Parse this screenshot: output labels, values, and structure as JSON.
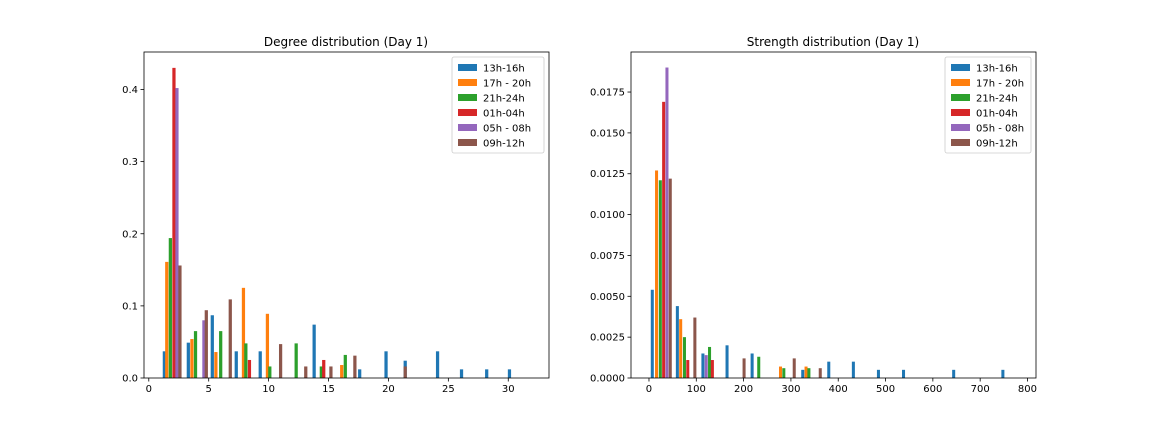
{
  "chart_data": [
    {
      "type": "bar",
      "title": "Degree distribution (Day 1)",
      "xlabel": "",
      "ylabel": "",
      "xlim": [
        -0.4,
        33.4
      ],
      "ylim": [
        0,
        0.452
      ],
      "xticks": [
        0,
        5,
        10,
        15,
        20,
        25,
        30
      ],
      "yticks": [
        0.0,
        0.1,
        0.2,
        0.3,
        0.4
      ],
      "ytick_labels": [
        "0.0",
        "0.1",
        "0.2",
        "0.3",
        "0.4"
      ],
      "bar_width": 0.27,
      "grid": false,
      "legend_position": "top-right",
      "series": [
        {
          "name": "13h-16h",
          "color": "#1f77b4",
          "points": [
            [
              1.3,
              0.037
            ],
            [
              3.3,
              0.049
            ],
            [
              5.3,
              0.087
            ],
            [
              7.3,
              0.037
            ],
            [
              9.3,
              0.037
            ],
            [
              13.8,
              0.074
            ],
            [
              17.6,
              0.012
            ],
            [
              19.8,
              0.037
            ],
            [
              21.4,
              0.024
            ],
            [
              24.1,
              0.037
            ],
            [
              26.1,
              0.012
            ],
            [
              28.2,
              0.012
            ],
            [
              30.1,
              0.012
            ]
          ]
        },
        {
          "name": "17h - 20h",
          "color": "#ff7f0e",
          "points": [
            [
              1.5,
              0.161
            ],
            [
              3.6,
              0.054
            ],
            [
              5.6,
              0.036
            ],
            [
              7.9,
              0.125
            ],
            [
              9.9,
              0.089
            ],
            [
              16.1,
              0.018
            ]
          ]
        },
        {
          "name": "21h-24h",
          "color": "#2ca02c",
          "points": [
            [
              1.8,
              0.194
            ],
            [
              3.9,
              0.065
            ],
            [
              6.0,
              0.065
            ],
            [
              8.1,
              0.048
            ],
            [
              10.1,
              0.016
            ],
            [
              12.3,
              0.048
            ],
            [
              14.4,
              0.016
            ],
            [
              16.4,
              0.032
            ]
          ]
        },
        {
          "name": "01h-04h",
          "color": "#d62728",
          "points": [
            [
              2.1,
              0.43
            ],
            [
              8.4,
              0.025
            ],
            [
              14.6,
              0.025
            ]
          ]
        },
        {
          "name": "05h - 08h",
          "color": "#9467bd",
          "points": [
            [
              2.35,
              0.402
            ],
            [
              4.6,
              0.08
            ]
          ]
        },
        {
          "name": "09h-12h",
          "color": "#8c564b",
          "points": [
            [
              2.6,
              0.156
            ],
            [
              4.8,
              0.094
            ],
            [
              6.8,
              0.109
            ],
            [
              11.0,
              0.047
            ],
            [
              13.1,
              0.016
            ],
            [
              15.2,
              0.016
            ],
            [
              17.2,
              0.031
            ],
            [
              21.4,
              0.016
            ]
          ]
        }
      ]
    },
    {
      "type": "bar",
      "title": "Strength distribution (Day 1)",
      "xlabel": "",
      "ylabel": "",
      "xlim": [
        -38,
        818
      ],
      "ylim": [
        0,
        0.01995
      ],
      "xticks": [
        0,
        100,
        200,
        300,
        400,
        500,
        600,
        700,
        800
      ],
      "yticks": [
        0.0,
        0.0025,
        0.005,
        0.0075,
        0.01,
        0.0125,
        0.015,
        0.0175
      ],
      "ytick_labels": [
        "0.0000",
        "0.0025",
        "0.0050",
        "0.0075",
        "0.0100",
        "0.0125",
        "0.0150",
        "0.0175"
      ],
      "bar_width": 6.4,
      "grid": false,
      "legend_position": "top-right",
      "series": [
        {
          "name": "13h-16h",
          "color": "#1f77b4",
          "points": [
            [
              7,
              0.0054
            ],
            [
              60,
              0.0044
            ],
            [
              114,
              0.0015
            ],
            [
              165,
              0.002
            ],
            [
              218,
              0.0015
            ],
            [
              325,
              0.0005
            ],
            [
              380,
              0.001
            ],
            [
              432,
              0.001
            ],
            [
              485,
              0.0005
            ],
            [
              538,
              0.0005
            ],
            [
              644,
              0.0005
            ],
            [
              748,
              0.0005
            ]
          ]
        },
        {
          "name": "17h - 20h",
          "color": "#ff7f0e",
          "points": [
            [
              16,
              0.0127
            ],
            [
              67,
              0.0036
            ],
            [
              278,
              0.0007
            ],
            [
              332,
              0.0007
            ]
          ]
        },
        {
          "name": "21h-24h",
          "color": "#2ca02c",
          "points": [
            [
              24,
              0.0121
            ],
            [
              75,
              0.0025
            ],
            [
              128,
              0.0019
            ],
            [
              232,
              0.0013
            ],
            [
              285,
              0.0006
            ],
            [
              338,
              0.0006
            ]
          ]
        },
        {
          "name": "01h-04h",
          "color": "#d62728",
          "points": [
            [
              31,
              0.0169
            ],
            [
              82,
              0.0011
            ],
            [
              134,
              0.0011
            ]
          ]
        },
        {
          "name": "05h - 08h",
          "color": "#9467bd",
          "points": [
            [
              38,
              0.019
            ],
            [
              121,
              0.0014
            ]
          ]
        },
        {
          "name": "09h-12h",
          "color": "#8c564b",
          "points": [
            [
              45,
              0.0122
            ],
            [
              97,
              0.0037
            ],
            [
              201,
              0.0012
            ],
            [
              307,
              0.0012
            ],
            [
              362,
              0.0006
            ]
          ]
        }
      ]
    }
  ]
}
